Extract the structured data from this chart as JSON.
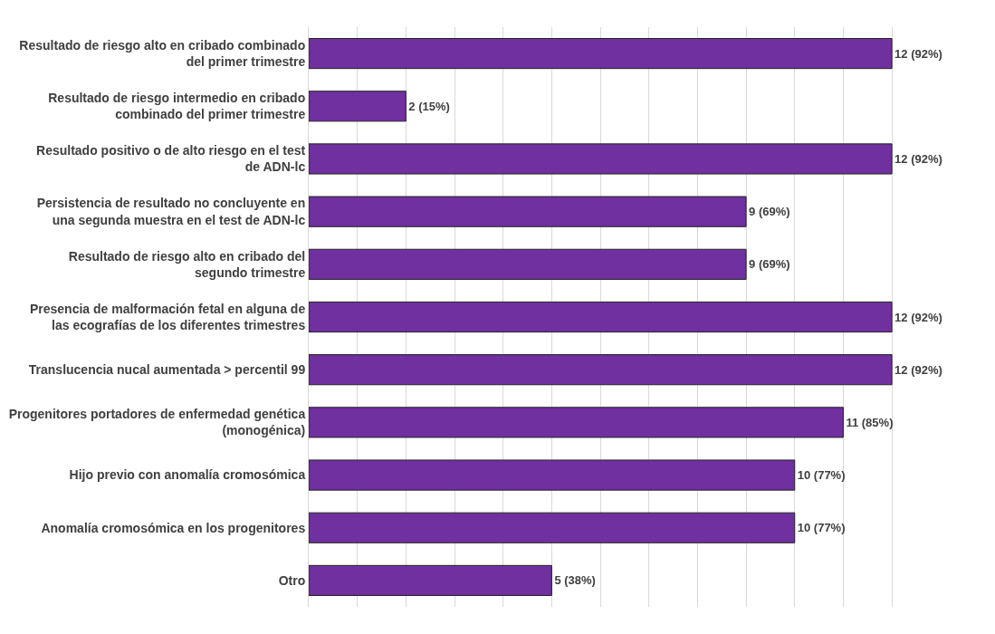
{
  "chart_data": {
    "type": "bar",
    "orientation": "horizontal",
    "categories": [
      "Resultado de riesgo alto en cribado combinado del primer trimestre",
      "Resultado de riesgo intermedio en cribado combinado del primer trimestre",
      "Resultado positivo o de alto riesgo en el test de ADN-lc",
      "Persistencia de resultado no concluyente en una segunda muestra en el test de ADN-lc",
      "Resultado de riesgo alto en cribado del segundo trimestre",
      "Presencia de malformación fetal en alguna de las ecografías de los diferentes trimestres",
      "Translucencia nucal aumentada > percentil 99",
      "Progenitores portadores de enfermedad genética (monogénica)",
      "Hijo previo con anomalía cromosómica",
      "Anomalía cromosómica en los progenitores",
      "Otro"
    ],
    "values": [
      12,
      2,
      12,
      9,
      9,
      12,
      12,
      11,
      10,
      10,
      5
    ],
    "value_labels": [
      "12 (92%)",
      "2 (15%)",
      "12 (92%)",
      "9 (69%)",
      "9 (69%)",
      "12 (92%)",
      "12 (92%)",
      "11 (85%)",
      "10 (77%)",
      "10 (77%)",
      "5 (38%)"
    ],
    "color": "#7030a0",
    "grid": "x",
    "tick_labels": "y"
  }
}
